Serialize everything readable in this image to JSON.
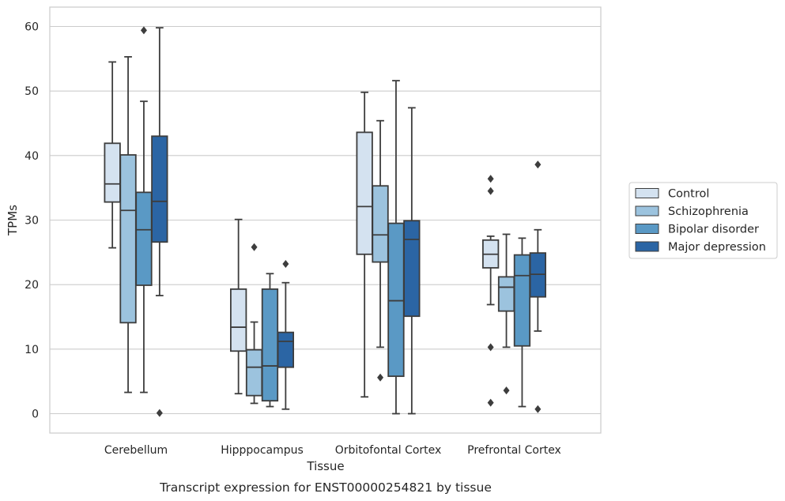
{
  "chart_data": {
    "type": "box",
    "title": "",
    "caption": "Transcript expression for ENST00000254821 by tissue",
    "xlabel": "Tissue",
    "ylabel": "TPMs",
    "ylim": [
      -3,
      63
    ],
    "yticks": [
      0,
      10,
      20,
      30,
      40,
      50,
      60
    ],
    "grid": "horizontal",
    "legend_position": "right",
    "categories": [
      "Cerebellum",
      "Hipppocampus",
      "Orbitofontal Cortex",
      "Prefrontal Cortex"
    ],
    "series": [
      {
        "name": "Control",
        "color": "#d4e2f0",
        "boxes": [
          {
            "whisker_low": 25.7,
            "q1": 32.8,
            "median": 35.6,
            "q3": 41.9,
            "whisker_high": 54.5,
            "outliers": []
          },
          {
            "whisker_low": 3.1,
            "q1": 9.7,
            "median": 13.4,
            "q3": 19.3,
            "whisker_high": 30.1,
            "outliers": []
          },
          {
            "whisker_low": 2.6,
            "q1": 24.7,
            "median": 32.1,
            "q3": 43.6,
            "whisker_high": 49.8,
            "outliers": []
          },
          {
            "whisker_low": 16.9,
            "q1": 22.6,
            "median": 24.7,
            "q3": 26.9,
            "whisker_high": 27.5,
            "outliers": [
              36.4,
              34.5,
              10.3,
              1.7
            ]
          }
        ]
      },
      {
        "name": "Schizophrenia",
        "color": "#9cc3de",
        "boxes": [
          {
            "whisker_low": 3.3,
            "q1": 14.1,
            "median": 31.5,
            "q3": 40.1,
            "whisker_high": 55.3,
            "outliers": []
          },
          {
            "whisker_low": 1.6,
            "q1": 2.8,
            "median": 7.2,
            "q3": 9.9,
            "whisker_high": 14.2,
            "outliers": [
              25.8
            ]
          },
          {
            "whisker_low": 10.3,
            "q1": 23.5,
            "median": 27.7,
            "q3": 35.3,
            "whisker_high": 45.4,
            "outliers": [
              5.6
            ]
          },
          {
            "whisker_low": 10.3,
            "q1": 15.9,
            "median": 19.6,
            "q3": 21.2,
            "whisker_high": 27.8,
            "outliers": [
              3.6
            ]
          }
        ]
      },
      {
        "name": "Bipolar disorder",
        "color": "#5a99c5",
        "boxes": [
          {
            "whisker_low": 3.3,
            "q1": 19.9,
            "median": 28.5,
            "q3": 34.3,
            "whisker_high": 48.4,
            "outliers": [
              59.4
            ]
          },
          {
            "whisker_low": 1.1,
            "q1": 2.0,
            "median": 7.4,
            "q3": 19.3,
            "whisker_high": 21.7,
            "outliers": []
          },
          {
            "whisker_low": 0.0,
            "q1": 5.8,
            "median": 17.5,
            "q3": 29.5,
            "whisker_high": 51.6,
            "outliers": []
          },
          {
            "whisker_low": 1.1,
            "q1": 10.5,
            "median": 21.4,
            "q3": 24.6,
            "whisker_high": 27.2,
            "outliers": []
          }
        ]
      },
      {
        "name": "Major depression",
        "color": "#2b65a4",
        "boxes": [
          {
            "whisker_low": 18.3,
            "q1": 26.6,
            "median": 32.9,
            "q3": 43.0,
            "whisker_high": 59.8,
            "outliers": [
              0.1
            ]
          },
          {
            "whisker_low": 0.7,
            "q1": 7.2,
            "median": 11.2,
            "q3": 12.6,
            "whisker_high": 20.3,
            "outliers": [
              23.2
            ]
          },
          {
            "whisker_low": 0.0,
            "q1": 15.1,
            "median": 27.0,
            "q3": 29.9,
            "whisker_high": 47.4,
            "outliers": []
          },
          {
            "whisker_low": 12.8,
            "q1": 18.1,
            "median": 21.6,
            "q3": 24.9,
            "whisker_high": 28.5,
            "outliers": [
              38.6,
              0.7
            ]
          }
        ]
      }
    ]
  }
}
